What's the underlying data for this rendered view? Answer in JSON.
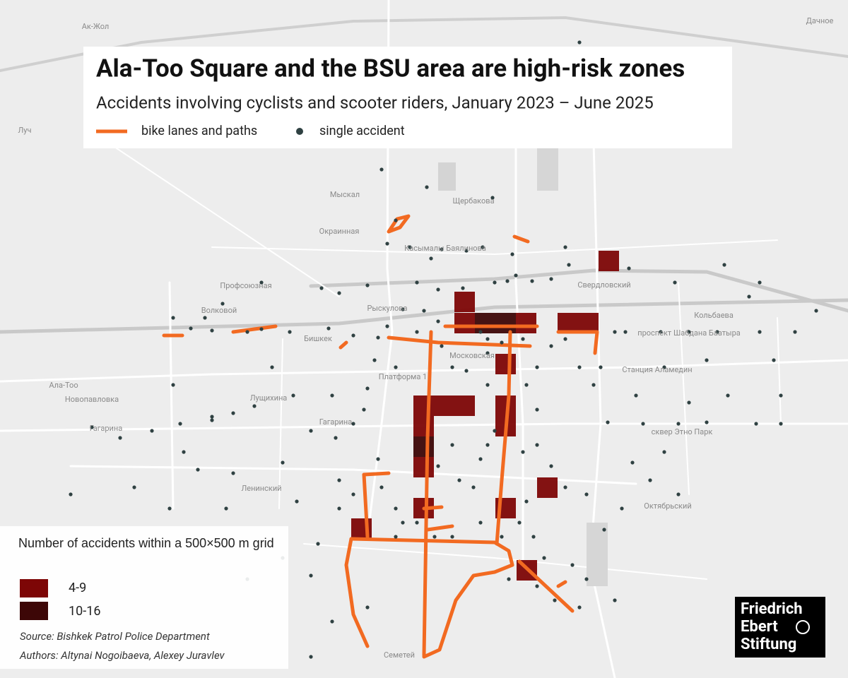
{
  "title": "Ala-Too Square and the BSU area are high-risk zones",
  "subtitle": "Accidents involving cyclists and scooter riders, January 2023 – June 2025",
  "legend": {
    "bike_lanes": {
      "label": "bike lanes and paths",
      "color": "#f26a21"
    },
    "single_accident": {
      "label": "single accident",
      "color": "#2f4142"
    }
  },
  "grid_legend": {
    "title": "Number of accidents within a 500×500 m grid",
    "classes": [
      {
        "label": "4-9",
        "color": "#7d0606"
      },
      {
        "label": "10-16",
        "color": "#3d0707"
      }
    ]
  },
  "source": "Source: Bishkek Patrol Police Department",
  "authors": "Authors: Altynai Nogoibaeva, Alexey Juravlev",
  "logo": [
    "Friedrich",
    "Ebert",
    "Stiftung"
  ],
  "map_labels": [
    "Ак-Жол",
    "Дачное",
    "Луч",
    "Бишкек",
    "Ала-Тоо",
    "Новопавловка",
    "Гагарина",
    "Ленинский",
    "Октябрьский",
    "Свердловский",
    "Станция Аламедин",
    "Платформа 1",
    "Профсоюзная",
    "Волковой",
    "Мыскал",
    "Щербакова",
    "Касымалы Баялинова",
    "Рыскулова",
    "Московская",
    "Кольбаева",
    "проспект Шабдана Баатыра",
    "сквер Этно Парк",
    "Лущихина",
    "Семетей",
    "Гагарина",
    "Окраинная"
  ]
}
